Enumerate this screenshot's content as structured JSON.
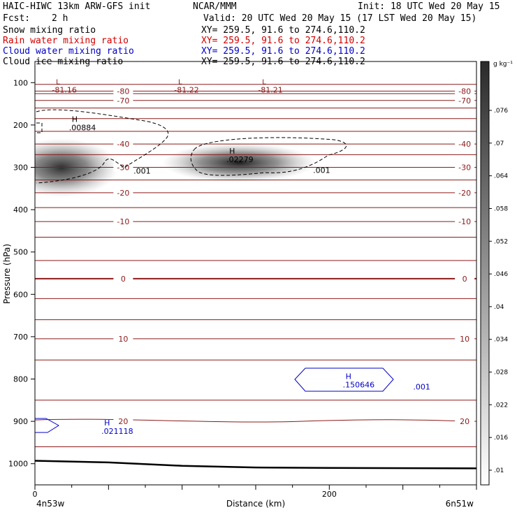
{
  "header": {
    "model": "HAIC-HIWC 13km ARW-GFS init",
    "org": "NCAR/MMM",
    "init": "Init: 18 UTC Wed 20 May 15",
    "fcst_label": "Fcst:",
    "fcst_value": "2 h",
    "valid": "Valid: 20 UTC Wed 20 May 15 (17 LST Wed 20 May 15)",
    "fields": [
      {
        "name": "Snow mixing ratio",
        "xy": "XY= 259.5, 91.6 to 274.6,110.2",
        "color": "#000000"
      },
      {
        "name": "Rain water mixing ratio",
        "xy": "XY= 259.5, 91.6 to 274.6,110.2",
        "color": "#d00000"
      },
      {
        "name": "Cloud water mixing ratio",
        "xy": "XY= 259.5, 91.6 to 274.6,110.2",
        "color": "#0000c8"
      },
      {
        "name": "Cloud ice mixing ratio",
        "xy": "XY= 259.5, 91.6 to 274.6,110.2",
        "color": "#000000"
      }
    ]
  },
  "colorbar": {
    "unit": "g kg⁻¹",
    "ticks": [
      ".01",
      ".016",
      ".022",
      ".028",
      ".034",
      ".04",
      ".046",
      ".052",
      ".058",
      ".064",
      ".07",
      ".076"
    ]
  },
  "chart_data": {
    "type": "cross-section",
    "xlabel": "Distance (km)",
    "ylabel": "Pressure (hPa)",
    "xlim": [
      0,
      300
    ],
    "ylim": [
      1050,
      50
    ],
    "x_ticks": [
      0,
      200
    ],
    "y_ticks": [
      100,
      200,
      300,
      400,
      500,
      600,
      700,
      800,
      900,
      1000
    ],
    "endpoints": {
      "left": "4n53w",
      "right": "6n51w"
    },
    "temperature_contours": [
      {
        "value": -80,
        "label": "-80",
        "pressure": 120
      },
      {
        "value": -70,
        "label": "-70",
        "pressure": 142
      },
      {
        "value": -40,
        "label": "-40",
        "pressure": 245
      },
      {
        "value": -30,
        "label": "-30",
        "pressure": 300
      },
      {
        "value": -20,
        "label": "-20",
        "pressure": 360
      },
      {
        "value": -10,
        "label": "-10",
        "pressure": 428
      },
      {
        "value": 0,
        "label": "0",
        "pressure": 563
      },
      {
        "value": 10,
        "label": "10",
        "pressure": 705
      },
      {
        "value": 20,
        "label": "20",
        "pressure": 900
      }
    ],
    "temperature_minima": [
      {
        "label": "L",
        "value": "-81.16",
        "x": 20,
        "pressure": 110
      },
      {
        "label": "L",
        "value": "-81.22",
        "x": 103,
        "pressure": 110
      },
      {
        "label": "L",
        "value": "-81.21",
        "x": 160,
        "pressure": 110
      }
    ],
    "snow_maxima": [
      {
        "label": "H",
        "value": ".00884",
        "x": 26,
        "pressure": 203
      },
      {
        "label": "H",
        "value": ".02279",
        "x": 133,
        "pressure": 278
      }
    ],
    "cloud_water_maxima": [
      {
        "label": "H",
        "value": ".150646",
        "x": 212,
        "pressure": 810
      },
      {
        "label": "H",
        "value": ".021118",
        "x": 48,
        "pressure": 920
      }
    ],
    "contour_labels": [
      {
        "value": ".001",
        "x": 67,
        "pressure": 315,
        "color": "#000000"
      },
      {
        "value": ".001",
        "x": 189,
        "pressure": 313,
        "color": "#000000"
      },
      {
        "value": ".001",
        "x": 257,
        "pressure": 825,
        "color": "#0000c8"
      }
    ],
    "surface_pressure": [
      {
        "x": 0,
        "pressure": 993
      },
      {
        "x": 50,
        "pressure": 997
      },
      {
        "x": 100,
        "pressure": 1005
      },
      {
        "x": 150,
        "pressure": 1009
      },
      {
        "x": 200,
        "pressure": 1010
      },
      {
        "x": 300,
        "pressure": 1011
      }
    ],
    "colors": {
      "temperature": "#8b1a1a",
      "snow": "#000000",
      "cloud_water": "#0000c8",
      "surface": "#000000"
    }
  }
}
